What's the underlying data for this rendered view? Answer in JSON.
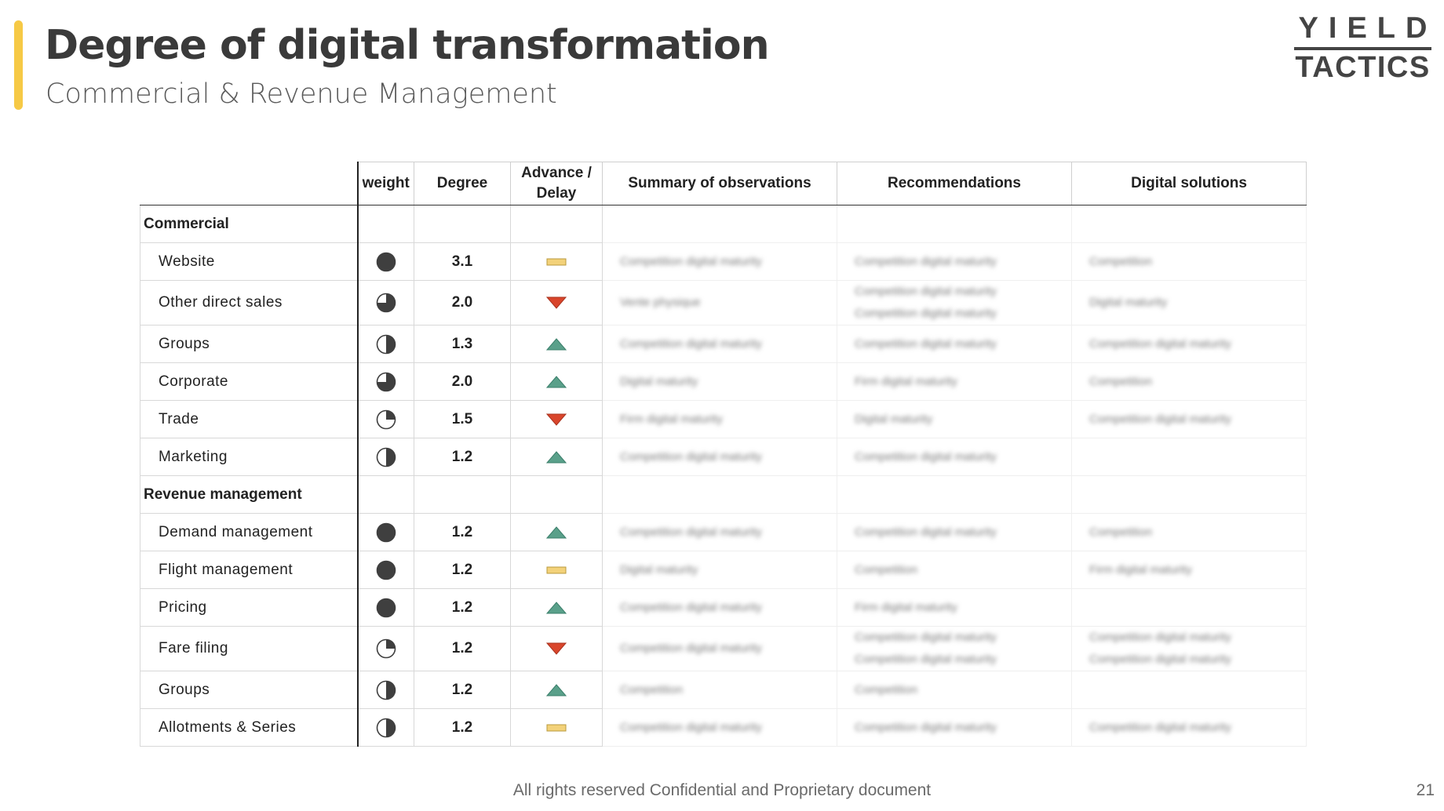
{
  "header": {
    "title": "Degree of digital transformation",
    "subtitle": "Commercial & Revenue Management",
    "accent_color": "#f6c945"
  },
  "logo": {
    "line1": "YIELD",
    "line2": "TACTICS"
  },
  "table": {
    "columns": [
      "weight",
      "Degree",
      "Advance / Delay",
      "Summary of observations",
      "Recommendations",
      "Digital solutions"
    ],
    "sections": [
      {
        "name": "Commercial",
        "rows": [
          {
            "label": "Website",
            "weight": 1.0,
            "degree": "3.1",
            "trend": "neutral",
            "summary": [
              "Competition digital maturity"
            ],
            "recommendations": [
              "Competition digital maturity"
            ],
            "solutions": [
              "Competition"
            ]
          },
          {
            "label": "Other direct sales",
            "weight": 0.75,
            "degree": "2.0",
            "trend": "down",
            "summary": [
              "Vente physique"
            ],
            "recommendations": [
              "Competition digital maturity",
              "Competition digital maturity"
            ],
            "solutions": [
              "Digital maturity"
            ]
          },
          {
            "label": "Groups",
            "weight": 0.5,
            "degree": "1.3",
            "trend": "up",
            "summary": [
              "Competition digital maturity"
            ],
            "recommendations": [
              "Competition digital maturity"
            ],
            "solutions": [
              "Competition digital maturity"
            ]
          },
          {
            "label": "Corporate",
            "weight": 0.75,
            "degree": "2.0",
            "trend": "up",
            "summary": [
              "Digital maturity"
            ],
            "recommendations": [
              "Firm digital maturity"
            ],
            "solutions": [
              "Competition"
            ]
          },
          {
            "label": "Trade",
            "weight": 0.25,
            "degree": "1.5",
            "trend": "down",
            "summary": [
              "Firm digital maturity"
            ],
            "recommendations": [
              "Digital maturity"
            ],
            "solutions": [
              "Competition digital maturity"
            ]
          },
          {
            "label": "Marketing",
            "weight": 0.5,
            "degree": "1.2",
            "trend": "up",
            "summary": [
              "Competition digital maturity"
            ],
            "recommendations": [
              "Competition digital maturity"
            ],
            "solutions": []
          }
        ]
      },
      {
        "name": "Revenue management",
        "rows": [
          {
            "label": "Demand management",
            "weight": 1.0,
            "degree": "1.2",
            "trend": "up",
            "summary": [
              "Competition digital maturity"
            ],
            "recommendations": [
              "Competition digital maturity"
            ],
            "solutions": [
              "Competition"
            ]
          },
          {
            "label": "Flight management",
            "weight": 1.0,
            "degree": "1.2",
            "trend": "neutral",
            "summary": [
              "Digital maturity"
            ],
            "recommendations": [
              "Competition"
            ],
            "solutions": [
              "Firm digital maturity"
            ]
          },
          {
            "label": "Pricing",
            "weight": 1.0,
            "degree": "1.2",
            "trend": "up",
            "summary": [
              "Competition digital maturity"
            ],
            "recommendations": [
              "Firm digital maturity"
            ],
            "solutions": []
          },
          {
            "label": "Fare filing",
            "weight": 0.25,
            "degree": "1.2",
            "trend": "down",
            "summary": [
              "Competition digital maturity"
            ],
            "recommendations": [
              "Competition digital maturity",
              "Competition digital maturity"
            ],
            "solutions": [
              "Competition digital maturity",
              "Competition digital maturity"
            ]
          },
          {
            "label": "Groups",
            "weight": 0.5,
            "degree": "1.2",
            "trend": "up",
            "summary": [
              "Competition"
            ],
            "recommendations": [
              "Competition"
            ],
            "solutions": []
          },
          {
            "label": "Allotments & Series",
            "weight": 0.5,
            "degree": "1.2",
            "trend": "neutral",
            "summary": [
              "Competition digital maturity"
            ],
            "recommendations": [
              "Competition digital maturity"
            ],
            "solutions": [
              "Competition digital maturity"
            ]
          }
        ]
      }
    ],
    "colors": {
      "pie_fill": "#3f3f3f",
      "up": "#5aa08a",
      "down": "#d9452b",
      "neutral": "#f3d27a"
    }
  },
  "footer": {
    "text": "All rights reserved Confidential and Proprietary document",
    "page_number": "21"
  }
}
